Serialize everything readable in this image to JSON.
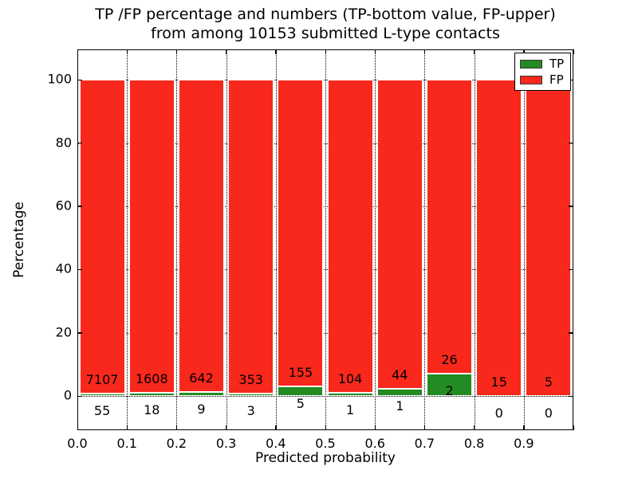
{
  "title": {
    "line1": "TP /FP percentage and numbers (TP-bottom value, FP-upper)",
    "line2": "from among 10153 submitted L-type contacts"
  },
  "chart_data": {
    "type": "bar",
    "stacked": true,
    "normalized_per_bin_percent": 100,
    "total_contacts": 10153,
    "bin_width": 0.1,
    "bin_starts": [
      0.0,
      0.1,
      0.2,
      0.3,
      0.4,
      0.5,
      0.6,
      0.7,
      0.8,
      0.9
    ],
    "series": [
      {
        "name": "TP",
        "color": "#228b22",
        "counts": [
          55,
          18,
          9,
          3,
          5,
          1,
          1,
          2,
          0,
          0
        ]
      },
      {
        "name": "FP",
        "color": "#f8281c",
        "counts": [
          7107,
          1608,
          642,
          353,
          155,
          104,
          44,
          26,
          15,
          5
        ]
      }
    ],
    "tp_percent_of_bin": [
      0.77,
      1.11,
      1.38,
      0.84,
      3.13,
      0.95,
      2.22,
      7.14,
      0.0,
      0.0
    ],
    "xlabel": "Predicted probability",
    "ylabel": "Percentage",
    "xlim": [
      0.0,
      1.0
    ],
    "ylim": [
      -10.8,
      109.6
    ],
    "xticks": [
      "0.0",
      "0.1",
      "0.2",
      "0.3",
      "0.4",
      "0.5",
      "0.6",
      "0.7",
      "0.8",
      "0.9"
    ],
    "yticks": [
      "0",
      "20",
      "40",
      "60",
      "80",
      "100"
    ],
    "grid": "dotted",
    "edge_color": "#ffffff",
    "legend": {
      "position": "upper right",
      "entries": [
        {
          "label": "TP",
          "color": "#228b22"
        },
        {
          "label": "FP",
          "color": "#f8281c"
        }
      ]
    }
  }
}
